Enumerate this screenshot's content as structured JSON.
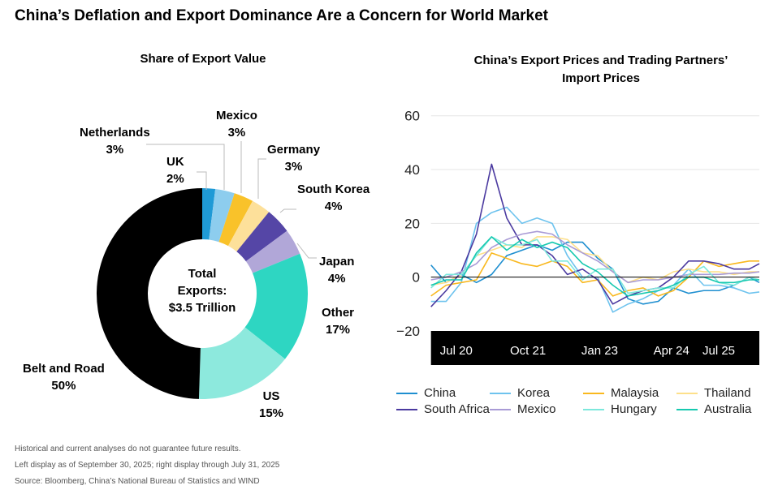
{
  "title": "China’s Deflation and Export Dominance Are a Concern for World Market",
  "footnotes": [
    "Historical and current analyses do not guarantee future results.",
    "Left display as of September 30, 2025; right display through July 31, 2025",
    "Source: Bloomberg, China’s National Bureau of Statistics and WIND"
  ],
  "chart_data": [
    {
      "type": "pie",
      "title": "Share of Export Value",
      "donut": true,
      "center_label": [
        "Total",
        "Exports:",
        "$3.5 Trillion"
      ],
      "slices": [
        {
          "label": "UK",
          "value": 2,
          "display": "2%",
          "color": "#1f9ad6"
        },
        {
          "label": "Netherlands",
          "value": 3,
          "display": "3%",
          "color": "#8dcdee"
        },
        {
          "label": "Mexico",
          "value": 3,
          "display": "3%",
          "color": "#f9c22a"
        },
        {
          "label": "Germany",
          "value": 3,
          "display": "3%",
          "color": "#fde09a"
        },
        {
          "label": "South Korea",
          "value": 4,
          "display": "4%",
          "color": "#5546a6"
        },
        {
          "label": "Japan",
          "value": 4,
          "display": "4%",
          "color": "#b1a7d8"
        },
        {
          "label": "Other",
          "value": 17,
          "display": "17%",
          "color": "#2ed6c2"
        },
        {
          "label": "US",
          "value": 15,
          "display": "15%",
          "color": "#8de9dd"
        },
        {
          "label": "Belt and Road",
          "value": 50,
          "display": "50%",
          "color": "#000000"
        }
      ]
    },
    {
      "type": "line",
      "title": "China’s Export Prices and Trading Partners’ Import Prices",
      "ylim": [
        -20,
        60
      ],
      "yticks": [
        60,
        40,
        20,
        0,
        -20
      ],
      "xticks": [
        "Jul 20",
        "Oct 21",
        "Jan 23",
        "Apr 24",
        "Jul 25"
      ],
      "grid": true,
      "legend": "bottom",
      "x": [
        "Feb 20",
        "May 20",
        "Aug 20",
        "Nov 20",
        "Feb 21",
        "May 21",
        "Aug 21",
        "Nov 21",
        "Feb 22",
        "May 22",
        "Aug 22",
        "Nov 22",
        "Feb 23",
        "May 23",
        "Aug 23",
        "Nov 23",
        "Feb 24",
        "May 24",
        "Aug 24",
        "Nov 24",
        "Feb 25",
        "May 25",
        "Jul 25"
      ],
      "series": [
        {
          "name": "China",
          "color": "#1f8fd0",
          "values": [
            4.5,
            -2,
            1,
            -2,
            1,
            8,
            10,
            12,
            10,
            13,
            13,
            7,
            3,
            -8,
            -10,
            -9,
            -4,
            -6,
            -5,
            -5,
            -3,
            0,
            -2
          ]
        },
        {
          "name": "Korea",
          "color": "#6ec3ee",
          "values": [
            -9,
            -9,
            -2,
            20,
            24,
            26,
            20,
            22,
            20,
            8,
            0,
            0,
            -13,
            -10,
            -8,
            -5,
            -3,
            3,
            -3,
            -3,
            -4,
            -6,
            -5.5
          ]
        },
        {
          "name": "Malaysia",
          "color": "#f9b81e",
          "values": [
            -7,
            -3,
            -2,
            -1,
            9,
            7,
            5,
            4,
            6,
            4,
            -2,
            -1,
            -7,
            -5,
            -4,
            -7,
            -5,
            0,
            6,
            4,
            5,
            6,
            6
          ]
        },
        {
          "name": "Thailand",
          "color": "#fde08a",
          "values": [
            -3,
            -2,
            1,
            8,
            10,
            12,
            11,
            15,
            15,
            14,
            9,
            8,
            2,
            -2,
            0,
            -1,
            2,
            3,
            2,
            2,
            1,
            2,
            2
          ]
        },
        {
          "name": "South Africa",
          "color": "#4b3aa0",
          "values": [
            -11,
            -5,
            2,
            16,
            42,
            22,
            12,
            12,
            8,
            1,
            3,
            -1,
            -10,
            -7,
            -5,
            -4,
            0,
            6,
            6,
            5,
            3,
            3,
            5
          ]
        },
        {
          "name": "Mexico",
          "color": "#a99bd6",
          "values": [
            -1,
            0,
            2,
            5,
            11,
            14,
            16,
            17,
            16,
            12,
            9,
            6,
            2,
            -2,
            -1,
            -1,
            0,
            1,
            1,
            1,
            1.5,
            1.5,
            2
          ]
        },
        {
          "name": "Hungary",
          "color": "#7de8dc",
          "values": [
            -4,
            1,
            1,
            8,
            15,
            12,
            12,
            14,
            6,
            6,
            -1,
            3,
            3,
            -6,
            -5,
            -4,
            -4,
            1,
            4,
            -2,
            -3,
            0,
            -1
          ]
        },
        {
          "name": "Australia",
          "color": "#17c9b0",
          "values": [
            -3,
            -1,
            -1,
            9,
            15,
            10,
            14,
            11,
            13,
            11,
            5,
            2,
            -3,
            -7,
            -6,
            -5,
            -3,
            0,
            0,
            -2,
            -2,
            -1,
            -1
          ]
        }
      ]
    }
  ]
}
